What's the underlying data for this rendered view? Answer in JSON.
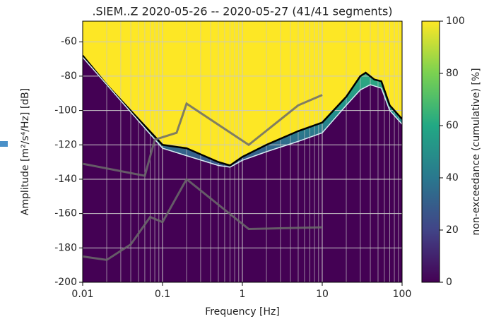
{
  "chart_data": {
    "type": "line",
    "title": ".SIEM..Z   2020-05-26 -- 2020-05-27   (41/41 segments)",
    "x_label": "Frequency [Hz]",
    "y_label": "Amplitude [m²/s⁴/Hz] [dB]",
    "xscale": "log",
    "xlim": [
      0.01,
      100
    ],
    "xticks": [
      0.01,
      0.1,
      1,
      10,
      100
    ],
    "ylim": [
      -200,
      -48
    ],
    "yticks": [
      -200,
      -180,
      -160,
      -140,
      -120,
      -100,
      -80,
      -60
    ],
    "grid": true,
    "colorbar": {
      "label": "non-exceedance (cumulative) [%]",
      "colormap": "viridis",
      "lim": [
        0,
        100
      ],
      "ticks": [
        0,
        20,
        40,
        60,
        80,
        100
      ]
    },
    "series": [
      {
        "color": "#000000",
        "x": [
          0.01,
          0.02,
          0.05,
          0.1,
          0.2,
          0.5,
          0.7,
          1,
          2,
          5,
          10,
          20,
          30,
          35,
          45,
          55,
          70,
          100
        ],
        "values": [
          -68,
          -85,
          -105,
          -120,
          -122,
          -130,
          -132,
          -127,
          -120,
          -112,
          -107,
          -92,
          -80,
          -78,
          -82,
          -83,
          -97,
          -105
        ]
      },
      {
        "color": "#d6ecf2",
        "x": [
          0.01,
          0.1,
          0.5,
          0.7,
          1,
          2,
          5,
          10,
          20,
          30,
          40,
          55,
          70,
          100
        ],
        "values": [
          -69,
          -122,
          -132,
          -133,
          -129,
          -124,
          -118,
          -113,
          -97,
          -88,
          -85,
          -87,
          -100,
          -108
        ]
      },
      {
        "color": "#6b6b6b",
        "x": [
          0.01,
          0.06,
          0.08,
          0.15,
          0.2,
          1.2,
          5,
          10
        ],
        "values": [
          -131,
          -138,
          -117,
          -113,
          -96,
          -120,
          -97,
          -91
        ]
      },
      {
        "color": "#6b6b6b",
        "x": [
          0.01,
          0.02,
          0.04,
          0.07,
          0.1,
          0.2,
          1.2,
          10
        ],
        "values": [
          -185,
          -187,
          -178,
          -162,
          -165,
          -140,
          -169,
          -168
        ]
      }
    ]
  }
}
